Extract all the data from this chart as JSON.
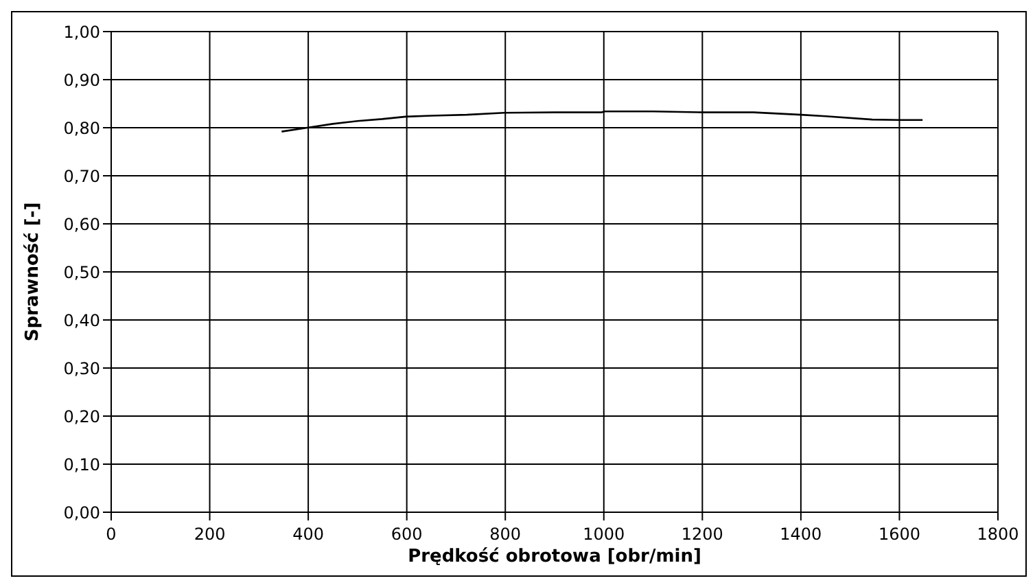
{
  "chart_data": {
    "type": "line",
    "xlabel": "Prędkość obrotowa [obr/min]",
    "ylabel": "Sprawność [-]",
    "x": [
      346,
      398,
      450,
      500,
      550,
      598,
      650,
      722,
      798,
      900,
      996,
      1002,
      1100,
      1202,
      1304,
      1400,
      1450,
      1545,
      1600,
      1647
    ],
    "series": [
      {
        "color": "#000000",
        "values": [
          0.792,
          0.8,
          0.808,
          0.814,
          0.818,
          0.823,
          0.825,
          0.827,
          0.831,
          0.832,
          0.832,
          0.834,
          0.834,
          0.832,
          0.832,
          0.827,
          0.824,
          0.817,
          0.816,
          0.816
        ]
      }
    ],
    "xlim": [
      0,
      1800
    ],
    "xticks": [
      0,
      200,
      400,
      600,
      800,
      1000,
      1200,
      1400,
      1600,
      1800
    ],
    "ylim": [
      0,
      1
    ],
    "yticks": [
      {
        "value": 0,
        "label": "0,00"
      },
      {
        "value": 0.1,
        "label": "0,10"
      },
      {
        "value": 0.2,
        "label": "0,20"
      },
      {
        "value": 0.3,
        "label": "0,30"
      },
      {
        "value": 0.4,
        "label": "0,40"
      },
      {
        "value": 0.5,
        "label": "0,50"
      },
      {
        "value": 0.6,
        "label": "0,60"
      },
      {
        "value": 0.7,
        "label": "0,70"
      },
      {
        "value": 0.8,
        "label": "0,80"
      },
      {
        "value": 0.9,
        "label": "0,90"
      },
      {
        "value": 1,
        "label": "1,00"
      }
    ],
    "grid": true,
    "legend": false,
    "marker": "none",
    "line_style": "solid"
  }
}
